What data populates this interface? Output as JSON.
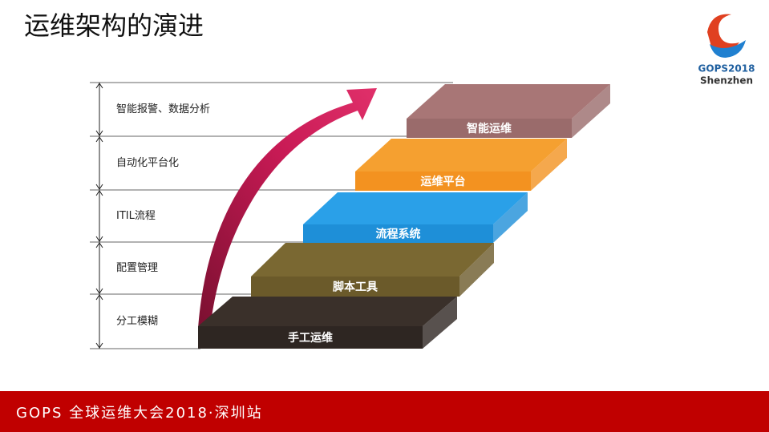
{
  "header": {
    "title": "运维架构的演进"
  },
  "logo": {
    "brand": "GOPS2018",
    "city": "Shenzhen"
  },
  "levels": [
    "智能报警、数据分析",
    "自动化平台化",
    "ITIL流程",
    "配置管理",
    "分工模糊"
  ],
  "steps": [
    "智能运维",
    "运维平台",
    "流程系统",
    "脚本工具",
    "手工运维"
  ],
  "footer": {
    "text": "GOPS 全球运维大会2018·深圳站"
  }
}
